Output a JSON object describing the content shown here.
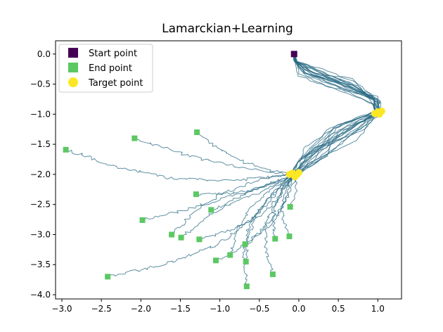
{
  "chart_data": {
    "type": "line",
    "title": "Lamarckian+Learning",
    "xlabel": "",
    "ylabel": "",
    "xlim": [
      -3.08,
      1.3
    ],
    "ylim": [
      -4.07,
      0.22
    ],
    "xticks": [
      -3.0,
      -2.5,
      -2.0,
      -1.5,
      -1.0,
      -0.5,
      0.0,
      0.5,
      1.0
    ],
    "xtick_labels": [
      "−3.0",
      "−2.5",
      "−2.0",
      "−1.5",
      "−1.0",
      "−0.5",
      "0.0",
      "0.5",
      "1.0"
    ],
    "yticks": [
      0.0,
      -0.5,
      -1.0,
      -1.5,
      -2.0,
      -2.5,
      -3.0,
      -3.5,
      -4.0
    ],
    "ytick_labels": [
      "0.0",
      "−0.5",
      "−1.0",
      "−1.5",
      "−2.0",
      "−2.5",
      "−3.0",
      "−3.5",
      "−4.0"
    ],
    "grid": false,
    "legend_position": "top-left",
    "colors": {
      "path": "#2a6b84",
      "start": "#440154",
      "end": "#5cc863",
      "target": "#fde725"
    },
    "legend": [
      {
        "label": "Start point",
        "marker": "square",
        "color": "#440154"
      },
      {
        "label": "End point",
        "marker": "square",
        "color": "#5cc863"
      },
      {
        "label": "Target point",
        "marker": "circle",
        "color": "#fde725"
      }
    ],
    "start_point": {
      "x": -0.06,
      "y": 0.0
    },
    "target_points": [
      {
        "x": 1.0,
        "y": -0.96
      },
      {
        "x": 0.96,
        "y": -0.99
      },
      {
        "x": 1.05,
        "y": -0.95
      },
      {
        "x": 1.02,
        "y": -1.0
      },
      {
        "x": -0.08,
        "y": -1.98
      },
      {
        "x": -0.02,
        "y": -2.0
      },
      {
        "x": -0.12,
        "y": -2.0
      },
      {
        "x": -0.05,
        "y": -2.04
      },
      {
        "x": 0.0,
        "y": -1.97
      }
    ],
    "end_points": [
      {
        "x": -2.95,
        "y": -1.59
      },
      {
        "x": -2.08,
        "y": -1.4
      },
      {
        "x": -1.29,
        "y": -1.3
      },
      {
        "x": -1.3,
        "y": -2.33
      },
      {
        "x": -1.11,
        "y": -2.59
      },
      {
        "x": -1.98,
        "y": -2.76
      },
      {
        "x": -1.61,
        "y": -3.0
      },
      {
        "x": -1.49,
        "y": -3.05
      },
      {
        "x": -1.26,
        "y": -3.08
      },
      {
        "x": -2.42,
        "y": -3.7
      },
      {
        "x": -1.05,
        "y": -3.43
      },
      {
        "x": -0.87,
        "y": -3.34
      },
      {
        "x": -0.68,
        "y": -3.16
      },
      {
        "x": -0.67,
        "y": -3.45
      },
      {
        "x": -0.66,
        "y": -3.86
      },
      {
        "x": -0.33,
        "y": -3.66
      },
      {
        "x": -0.3,
        "y": -3.07
      },
      {
        "x": -0.12,
        "y": -3.03
      },
      {
        "x": -0.11,
        "y": -2.54
      }
    ],
    "series_count": 19
  }
}
